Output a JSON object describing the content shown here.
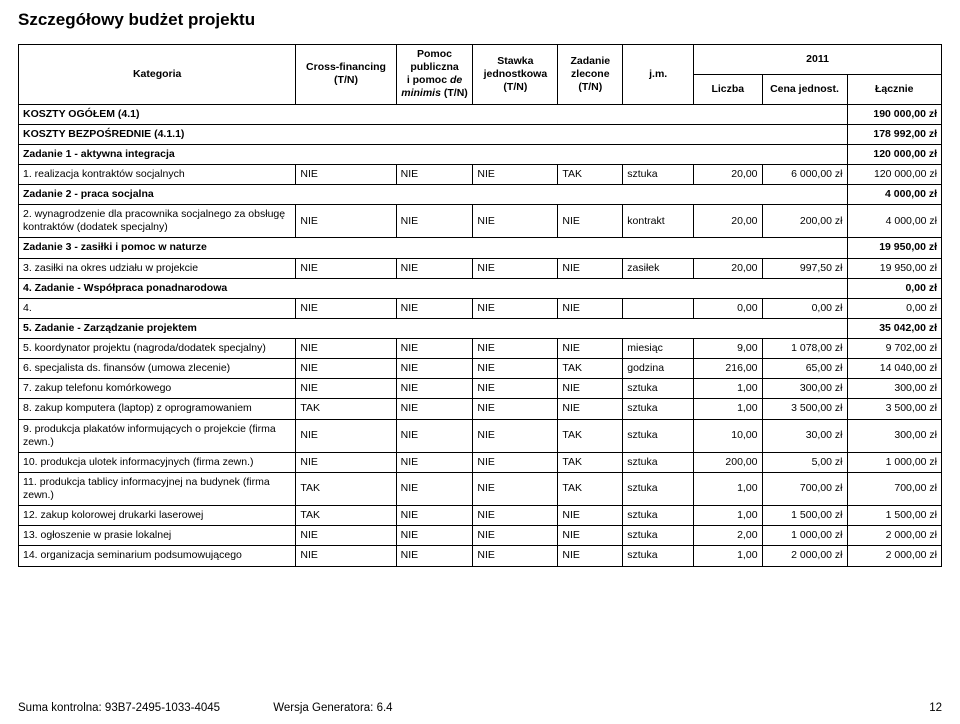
{
  "title": "Szczegółowy budżet projektu",
  "header": {
    "kategoria": "Kategoria",
    "cross": "Cross-financing (T/N)",
    "pomoc": "Pomoc publiczna i pomoc de minimis (T/N)",
    "pomoc_em": "de minimis",
    "stawka": "Stawka jednostkowa (T/N)",
    "zadanie": "Zadanie zlecone (T/N)",
    "jm": "j.m.",
    "year": "2011",
    "liczba": "Liczba",
    "cena": "Cena jednost.",
    "lacznie": "Łącznie"
  },
  "sections": {
    "s0": {
      "label": "KOSZTY OGÓŁEM (4.1)",
      "total": "190 000,00 zł"
    },
    "s1": {
      "label": "KOSZTY BEZPOŚREDNIE (4.1.1)",
      "total": "178 992,00 zł"
    },
    "z1": {
      "label": "Zadanie 1 - aktywna integracja",
      "total": "120 000,00 zł"
    },
    "z2": {
      "label": "Zadanie 2 - praca socjalna",
      "total": "4 000,00 zł"
    },
    "z3": {
      "label": "Zadanie 3 - zasiłki i pomoc w naturze",
      "total": "19 950,00 zł"
    },
    "z4": {
      "label": "4. Zadanie - Współpraca ponadnarodowa",
      "total": "0,00 zł"
    },
    "z5": {
      "label": "5. Zadanie - Zarządzanie projektem",
      "total": "35 042,00 zł"
    }
  },
  "rows": {
    "r1": {
      "label": "1. realizacja kontraktów socjalnych",
      "c1": "NIE",
      "c2": "NIE",
      "c3": "NIE",
      "c4": "TAK",
      "jm": "sztuka",
      "liczba": "20,00",
      "cena": "6 000,00 zł",
      "tot": "120 000,00 zł"
    },
    "r2": {
      "label": "2. wynagrodzenie dla pracownika socjalnego za obsługę kontraktów (dodatek specjalny)",
      "c1": "NIE",
      "c2": "NIE",
      "c3": "NIE",
      "c4": "NIE",
      "jm": "kontrakt",
      "liczba": "20,00",
      "cena": "200,00 zł",
      "tot": "4 000,00 zł"
    },
    "r3": {
      "label": "3. zasiłki na okres udziału w projekcie",
      "c1": "NIE",
      "c2": "NIE",
      "c3": "NIE",
      "c4": "NIE",
      "jm": "zasiłek",
      "liczba": "20,00",
      "cena": "997,50 zł",
      "tot": "19 950,00 zł"
    },
    "r4": {
      "label": "4.",
      "c1": "NIE",
      "c2": "NIE",
      "c3": "NIE",
      "c4": "NIE",
      "jm": "",
      "liczba": "0,00",
      "cena": "0,00 zł",
      "tot": "0,00 zł"
    },
    "r5": {
      "label": "5. koordynator projektu (nagroda/dodatek specjalny)",
      "c1": "NIE",
      "c2": "NIE",
      "c3": "NIE",
      "c4": "NIE",
      "jm": "miesiąc",
      "liczba": "9,00",
      "cena": "1 078,00 zł",
      "tot": "9 702,00 zł"
    },
    "r6": {
      "label": "6. specjalista ds. finansów (umowa zlecenie)",
      "c1": "NIE",
      "c2": "NIE",
      "c3": "NIE",
      "c4": "TAK",
      "jm": "godzina",
      "liczba": "216,00",
      "cena": "65,00 zł",
      "tot": "14 040,00 zł"
    },
    "r7": {
      "label": "7. zakup telefonu komórkowego",
      "c1": "NIE",
      "c2": "NIE",
      "c3": "NIE",
      "c4": "NIE",
      "jm": "sztuka",
      "liczba": "1,00",
      "cena": "300,00 zł",
      "tot": "300,00 zł"
    },
    "r8": {
      "label": "8. zakup komputera (laptop) z oprogramowaniem",
      "c1": "TAK",
      "c2": "NIE",
      "c3": "NIE",
      "c4": "NIE",
      "jm": "sztuka",
      "liczba": "1,00",
      "cena": "3 500,00 zł",
      "tot": "3 500,00 zł"
    },
    "r9": {
      "label": "9. produkcja plakatów informujących o projekcie (firma zewn.)",
      "c1": "NIE",
      "c2": "NIE",
      "c3": "NIE",
      "c4": "TAK",
      "jm": "sztuka",
      "liczba": "10,00",
      "cena": "30,00 zł",
      "tot": "300,00 zł"
    },
    "r10": {
      "label": "10. produkcja ulotek informacyjnych (firma zewn.)",
      "c1": "NIE",
      "c2": "NIE",
      "c3": "NIE",
      "c4": "TAK",
      "jm": "sztuka",
      "liczba": "200,00",
      "cena": "5,00 zł",
      "tot": "1 000,00 zł"
    },
    "r11": {
      "label": "11. produkcja tablicy informacyjnej na budynek (firma zewn.)",
      "c1": "TAK",
      "c2": "NIE",
      "c3": "NIE",
      "c4": "TAK",
      "jm": "sztuka",
      "liczba": "1,00",
      "cena": "700,00 zł",
      "tot": "700,00 zł"
    },
    "r12": {
      "label": "12. zakup kolorowej drukarki laserowej",
      "c1": "TAK",
      "c2": "NIE",
      "c3": "NIE",
      "c4": "NIE",
      "jm": "sztuka",
      "liczba": "1,00",
      "cena": "1 500,00 zł",
      "tot": "1 500,00 zł"
    },
    "r13": {
      "label": "13. ogłoszenie w prasie lokalnej",
      "c1": "NIE",
      "c2": "NIE",
      "c3": "NIE",
      "c4": "NIE",
      "jm": "sztuka",
      "liczba": "2,00",
      "cena": "1 000,00 zł",
      "tot": "2 000,00 zł"
    },
    "r14": {
      "label": "14. organizacja seminarium podsumowującego",
      "c1": "NIE",
      "c2": "NIE",
      "c3": "NIE",
      "c4": "NIE",
      "jm": "sztuka",
      "liczba": "1,00",
      "cena": "2 000,00 zł",
      "tot": "2 000,00 zł"
    }
  },
  "footer": {
    "suma": "Suma kontrolna: 93B7-2495-1033-4045",
    "wersja": "Wersja Generatora: 6.4",
    "page": "12"
  }
}
